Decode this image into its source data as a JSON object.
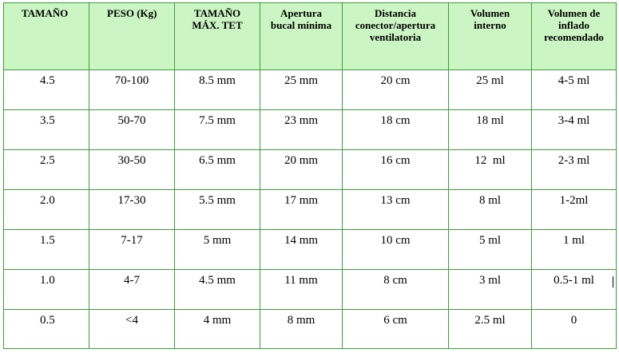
{
  "table": {
    "headers": [
      "TAMAÑO",
      "PESO (Kg)",
      "TAMAÑO\nMÁX. TET",
      "Apertura\nbucal mínima",
      "Distancia\nconector/apertura\nventilatoria",
      "Volumen\ninterno",
      "Volumen de\ninflado\nrecomendado"
    ],
    "rows": [
      [
        "4.5",
        "70-100",
        "8.5 mm",
        "25 mm",
        "20 cm",
        "25 ml",
        "4-5 ml"
      ],
      [
        "3.5",
        "50-70",
        "7.5 mm",
        "23 mm",
        "18 cm",
        "18 ml",
        "3-4 ml"
      ],
      [
        "2.5",
        "30-50",
        "6.5 mm",
        "20 mm",
        "16 cm",
        "12  ml",
        "2-3 ml"
      ],
      [
        "2.0",
        "17-30",
        "5.5 mm",
        "17 mm",
        "13 cm",
        "8 ml",
        "1-2ml"
      ],
      [
        "1.5",
        "7-17",
        "5 mm",
        "14 mm",
        "10 cm",
        "5 ml",
        "1 ml"
      ],
      [
        "1.0",
        "4-7",
        "4.5 mm",
        "11 mm",
        "8 cm",
        "3 ml",
        "0.5-1 ml"
      ],
      [
        "0.5",
        "<4",
        "4 mm",
        "8 mm",
        "6 cm",
        "2.5 ml",
        "0"
      ]
    ]
  },
  "colors": {
    "header_background": "#ccf5c4",
    "border": "#3e9b3e"
  }
}
